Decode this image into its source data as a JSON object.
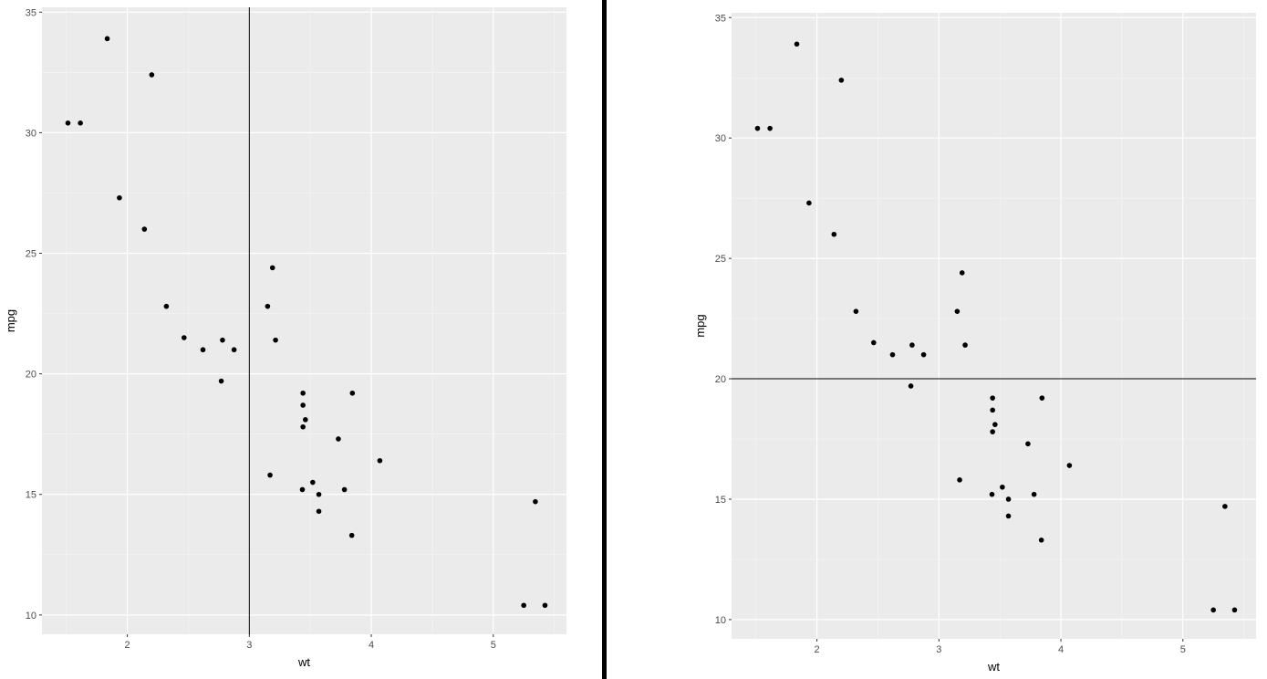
{
  "chart_data": [
    {
      "type": "scatter",
      "title": "",
      "xlabel": "wt",
      "ylabel": "mpg",
      "xlim": [
        1.3,
        5.6
      ],
      "ylim": [
        9.2,
        35.2
      ],
      "x_ticks": [
        2,
        3,
        4,
        5
      ],
      "y_ticks": [
        10,
        15,
        20,
        25,
        30,
        35
      ],
      "x_minor": [
        1.5,
        2.5,
        3.5,
        4.5,
        5.5
      ],
      "y_minor": [
        12.5,
        17.5,
        22.5,
        27.5,
        32.5
      ],
      "grid": true,
      "reference_line": {
        "orientation": "vertical",
        "value": 3
      },
      "points": [
        {
          "x": 2.62,
          "y": 21.0
        },
        {
          "x": 2.875,
          "y": 21.0
        },
        {
          "x": 2.32,
          "y": 22.8
        },
        {
          "x": 3.215,
          "y": 21.4
        },
        {
          "x": 3.44,
          "y": 18.7
        },
        {
          "x": 3.46,
          "y": 18.1
        },
        {
          "x": 3.57,
          "y": 14.3
        },
        {
          "x": 3.19,
          "y": 24.4
        },
        {
          "x": 3.15,
          "y": 22.8
        },
        {
          "x": 3.44,
          "y": 19.2
        },
        {
          "x": 3.44,
          "y": 17.8
        },
        {
          "x": 4.07,
          "y": 16.4
        },
        {
          "x": 3.73,
          "y": 17.3
        },
        {
          "x": 3.78,
          "y": 15.2
        },
        {
          "x": 5.25,
          "y": 10.4
        },
        {
          "x": 5.424,
          "y": 10.4
        },
        {
          "x": 5.345,
          "y": 14.7
        },
        {
          "x": 2.2,
          "y": 32.4
        },
        {
          "x": 1.615,
          "y": 30.4
        },
        {
          "x": 1.835,
          "y": 33.9
        },
        {
          "x": 2.465,
          "y": 21.5
        },
        {
          "x": 3.52,
          "y": 15.5
        },
        {
          "x": 3.435,
          "y": 15.2
        },
        {
          "x": 3.84,
          "y": 13.3
        },
        {
          "x": 3.845,
          "y": 19.2
        },
        {
          "x": 1.935,
          "y": 27.3
        },
        {
          "x": 2.14,
          "y": 26.0
        },
        {
          "x": 1.513,
          "y": 30.4
        },
        {
          "x": 3.17,
          "y": 15.8
        },
        {
          "x": 2.77,
          "y": 19.7
        },
        {
          "x": 3.57,
          "y": 15.0
        },
        {
          "x": 2.78,
          "y": 21.4
        }
      ]
    },
    {
      "type": "scatter",
      "title": "",
      "xlabel": "wt",
      "ylabel": "mpg",
      "xlim": [
        1.3,
        5.6
      ],
      "ylim": [
        9.2,
        35.2
      ],
      "x_ticks": [
        2,
        3,
        4,
        5
      ],
      "y_ticks": [
        10,
        15,
        20,
        25,
        30,
        35
      ],
      "x_minor": [
        1.5,
        2.5,
        3.5,
        4.5,
        5.5
      ],
      "y_minor": [
        12.5,
        17.5,
        22.5,
        27.5,
        32.5
      ],
      "grid": true,
      "reference_line": {
        "orientation": "horizontal",
        "value": 20
      },
      "points": [
        {
          "x": 2.62,
          "y": 21.0
        },
        {
          "x": 2.875,
          "y": 21.0
        },
        {
          "x": 2.32,
          "y": 22.8
        },
        {
          "x": 3.215,
          "y": 21.4
        },
        {
          "x": 3.44,
          "y": 18.7
        },
        {
          "x": 3.46,
          "y": 18.1
        },
        {
          "x": 3.57,
          "y": 14.3
        },
        {
          "x": 3.19,
          "y": 24.4
        },
        {
          "x": 3.15,
          "y": 22.8
        },
        {
          "x": 3.44,
          "y": 19.2
        },
        {
          "x": 3.44,
          "y": 17.8
        },
        {
          "x": 4.07,
          "y": 16.4
        },
        {
          "x": 3.73,
          "y": 17.3
        },
        {
          "x": 3.78,
          "y": 15.2
        },
        {
          "x": 5.25,
          "y": 10.4
        },
        {
          "x": 5.424,
          "y": 10.4
        },
        {
          "x": 5.345,
          "y": 14.7
        },
        {
          "x": 2.2,
          "y": 32.4
        },
        {
          "x": 1.615,
          "y": 30.4
        },
        {
          "x": 1.835,
          "y": 33.9
        },
        {
          "x": 2.465,
          "y": 21.5
        },
        {
          "x": 3.52,
          "y": 15.5
        },
        {
          "x": 3.435,
          "y": 15.2
        },
        {
          "x": 3.84,
          "y": 13.3
        },
        {
          "x": 3.845,
          "y": 19.2
        },
        {
          "x": 1.935,
          "y": 27.3
        },
        {
          "x": 2.14,
          "y": 26.0
        },
        {
          "x": 1.513,
          "y": 30.4
        },
        {
          "x": 3.17,
          "y": 15.8
        },
        {
          "x": 2.77,
          "y": 19.7
        },
        {
          "x": 3.57,
          "y": 15.0
        },
        {
          "x": 2.78,
          "y": 21.4
        }
      ]
    }
  ],
  "colors": {
    "panel_background": "#ebebeb",
    "grid_major": "#ffffff",
    "grid_minor": "#f5f5f5",
    "point": "#000000",
    "reference_line": "#000000",
    "divider": "#000000",
    "tick_text": "#4d4d4d",
    "axis_title": "#000000"
  }
}
